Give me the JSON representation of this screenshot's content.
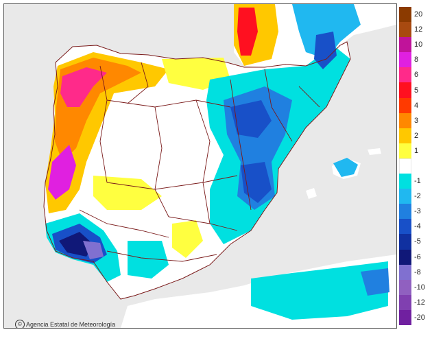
{
  "map": {
    "attribution": "Agencia Estatal de Meteorología",
    "logo_icon": "aemet-logo-icon",
    "background_color": "#e9e9e9",
    "land_color": "#ffffff",
    "border_color": "#7a1a1a"
  },
  "legend": {
    "items": [
      {
        "label": "20",
        "color": "#8b3a00"
      },
      {
        "label": "12",
        "color": "#a84a10"
      },
      {
        "label": "10",
        "color": "#c0139a"
      },
      {
        "label": "8",
        "color": "#e020e0"
      },
      {
        "label": "6",
        "color": "#ff2a8a"
      },
      {
        "label": "5",
        "color": "#ff1020"
      },
      {
        "label": "4",
        "color": "#ff3a00"
      },
      {
        "label": "3",
        "color": "#ff8800"
      },
      {
        "label": "2",
        "color": "#ffc800"
      },
      {
        "label": "1",
        "color": "#ffff40"
      },
      {
        "label": "",
        "color": "#ffffff"
      },
      {
        "label": "-1",
        "color": "#00e0e0"
      },
      {
        "label": "-2",
        "color": "#20b8f0"
      },
      {
        "label": "-3",
        "color": "#2080e0"
      },
      {
        "label": "-4",
        "color": "#1850c8"
      },
      {
        "label": "-5",
        "color": "#1030a0"
      },
      {
        "label": "-6",
        "color": "#101878"
      },
      {
        "label": "-8",
        "color": "#8070d0"
      },
      {
        "label": "-10",
        "color": "#9060c0"
      },
      {
        "label": "-12",
        "color": "#8040b0"
      },
      {
        "label": "-20",
        "color": "#7020a0"
      }
    ]
  }
}
